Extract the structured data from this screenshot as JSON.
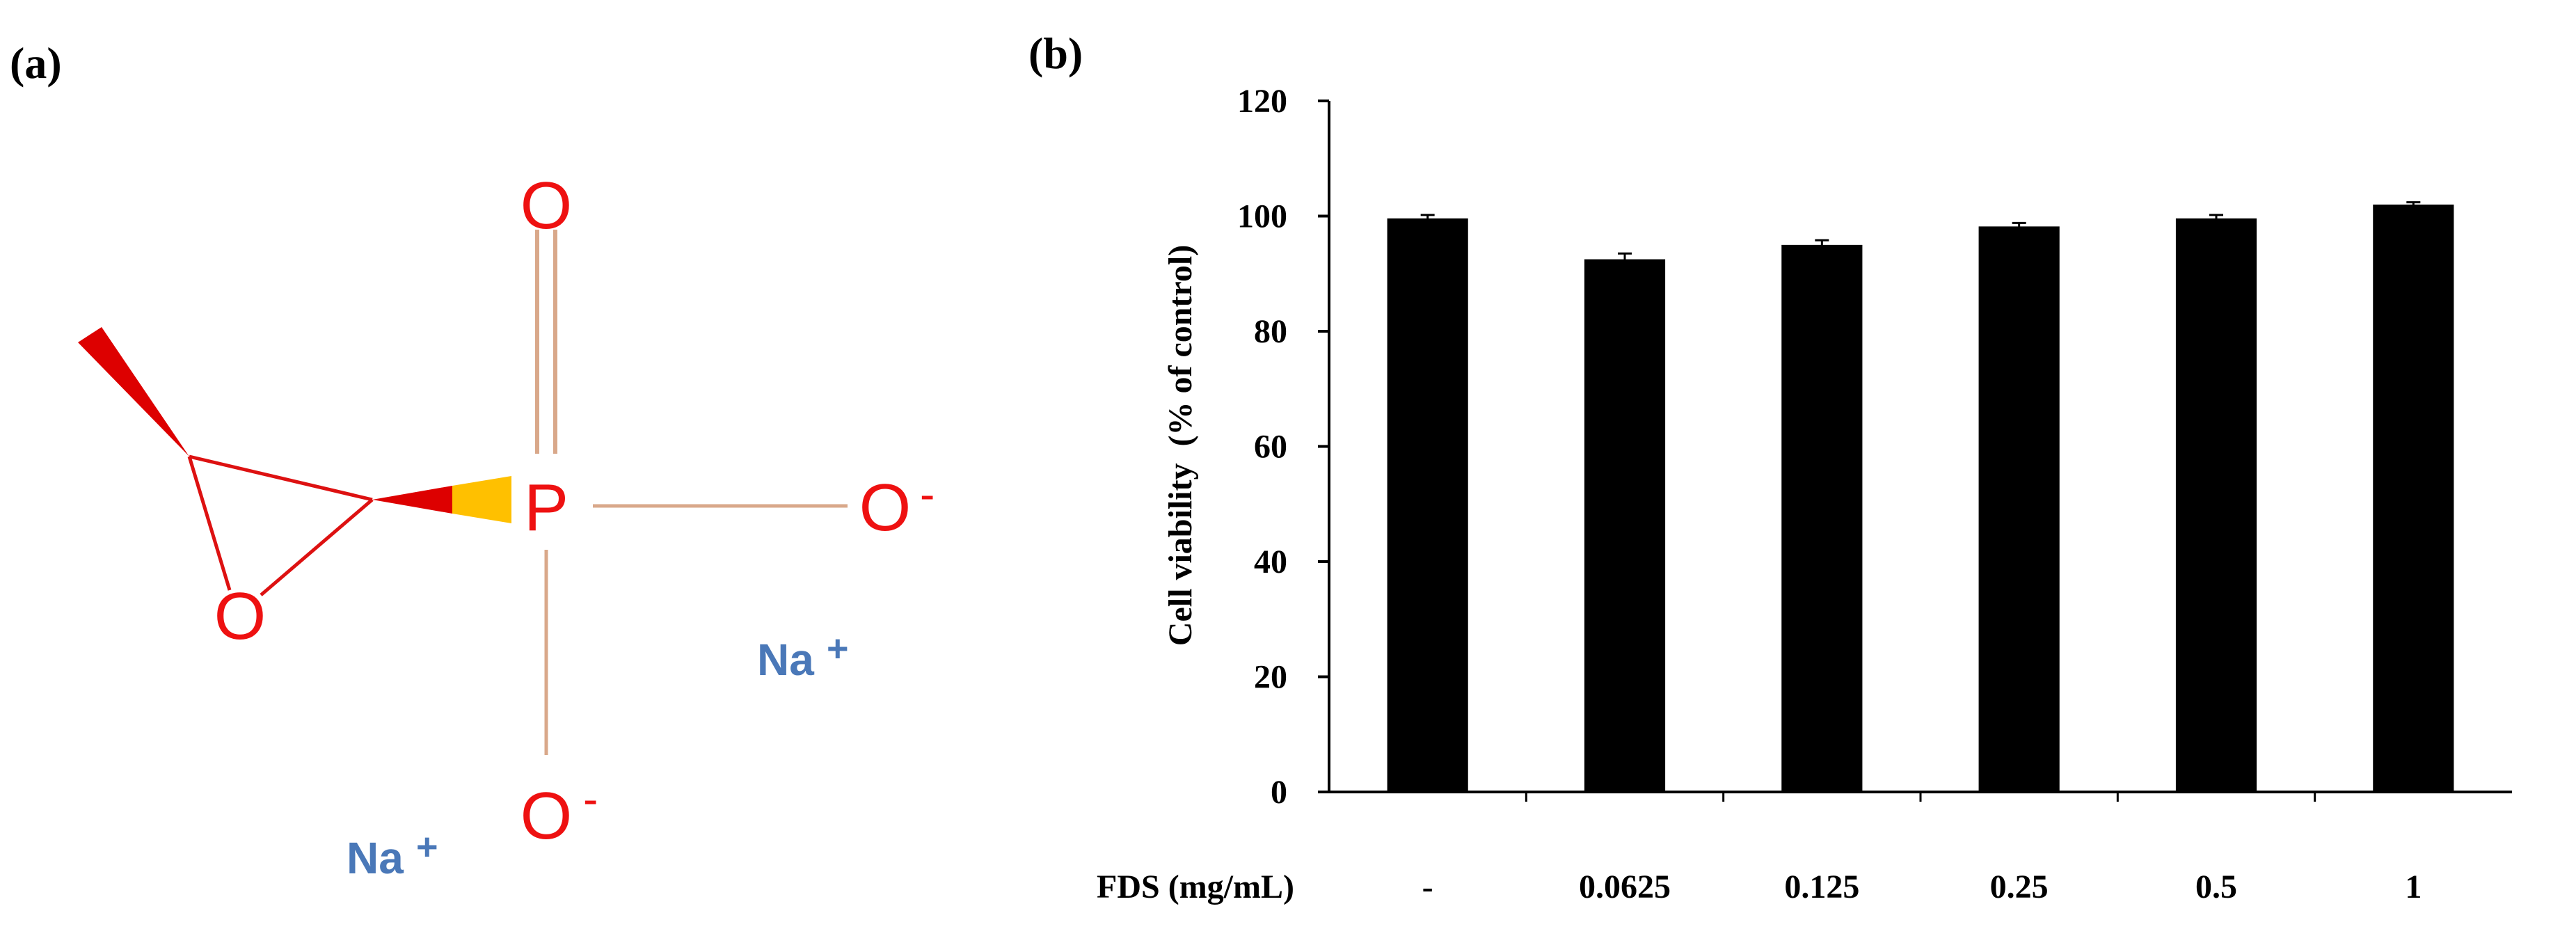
{
  "panels": {
    "a": {
      "label": "(a)",
      "atoms": {
        "o_top": "O",
        "p": "P",
        "o_right": "O",
        "o_right_charge": "-",
        "o_ring": "O",
        "o_bottom": "O",
        "o_bottom_charge": "-",
        "na_right": "Na",
        "na_right_charge": "+",
        "na_left": "Na",
        "na_left_charge": "+"
      }
    },
    "b": {
      "label": "(b)"
    }
  },
  "colors": {
    "bar": "#000000",
    "bond": "#d9a88a",
    "atom_red": "#ee1111",
    "ion_blue": "#4a78b8",
    "wedge_yellow": "#ffc000"
  },
  "chart_data": {
    "type": "bar",
    "title": "",
    "xlabel": "FDS (mg/mL)",
    "ylabel": "Cell viability  (% of control)",
    "categories": [
      "-",
      "0.0625",
      "0.125",
      "0.25",
      "0.5",
      "1"
    ],
    "values": [
      99.6,
      92.5,
      95.0,
      98.2,
      99.6,
      102.0
    ],
    "errors": [
      0.6,
      1.0,
      0.8,
      0.6,
      0.6,
      0.4
    ],
    "ylim": [
      0,
      120
    ],
    "yticks": [
      0,
      20,
      40,
      60,
      80,
      100,
      120
    ],
    "grid": false,
    "legend": "none"
  }
}
